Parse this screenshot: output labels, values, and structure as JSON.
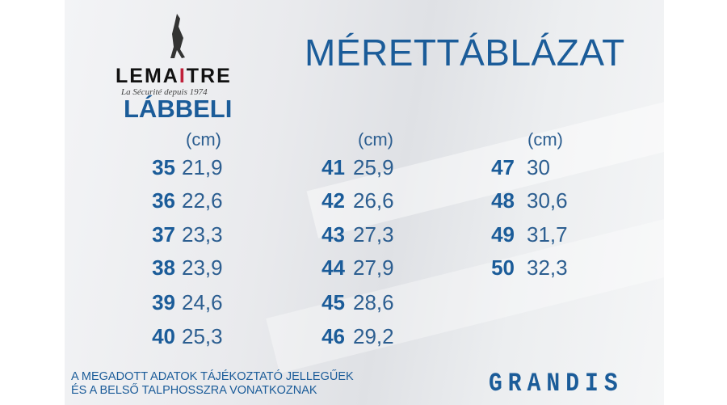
{
  "title": "MÉRETTÁBLÁZAT",
  "brand": {
    "name_pre": "LEMA",
    "name_i": "I",
    "name_post": "TRE",
    "tagline": "La Sécurité depuis 1974"
  },
  "section": "LÁBBELI",
  "unit": "(cm)",
  "columns": [
    [
      {
        "size": "35",
        "cm": "21,9"
      },
      {
        "size": "36",
        "cm": "22,6"
      },
      {
        "size": "37",
        "cm": "23,3"
      },
      {
        "size": "38",
        "cm": "23,9"
      },
      {
        "size": "39",
        "cm": "24,6"
      },
      {
        "size": "40",
        "cm": "25,3"
      }
    ],
    [
      {
        "size": "41",
        "cm": "25,9"
      },
      {
        "size": "42",
        "cm": "26,6"
      },
      {
        "size": "43",
        "cm": "27,3"
      },
      {
        "size": "44",
        "cm": "27,9"
      },
      {
        "size": "45",
        "cm": "28,6"
      },
      {
        "size": "46",
        "cm": "29,2"
      }
    ],
    [
      {
        "size": "47",
        "cm": "30"
      },
      {
        "size": "48",
        "cm": "30,6"
      },
      {
        "size": "49",
        "cm": "31,7"
      },
      {
        "size": "50",
        "cm": "32,3"
      }
    ]
  ],
  "note": {
    "line1": "A MEGADOTT ADATOK TÁJÉKOZTATÓ JELLEGŰEK",
    "line2": "ÉS A BELSŐ TALPHOSSZRA VONATKOZNAK"
  },
  "footer_logo": "GRANDIS",
  "colors": {
    "accent": "#1b5c99"
  }
}
